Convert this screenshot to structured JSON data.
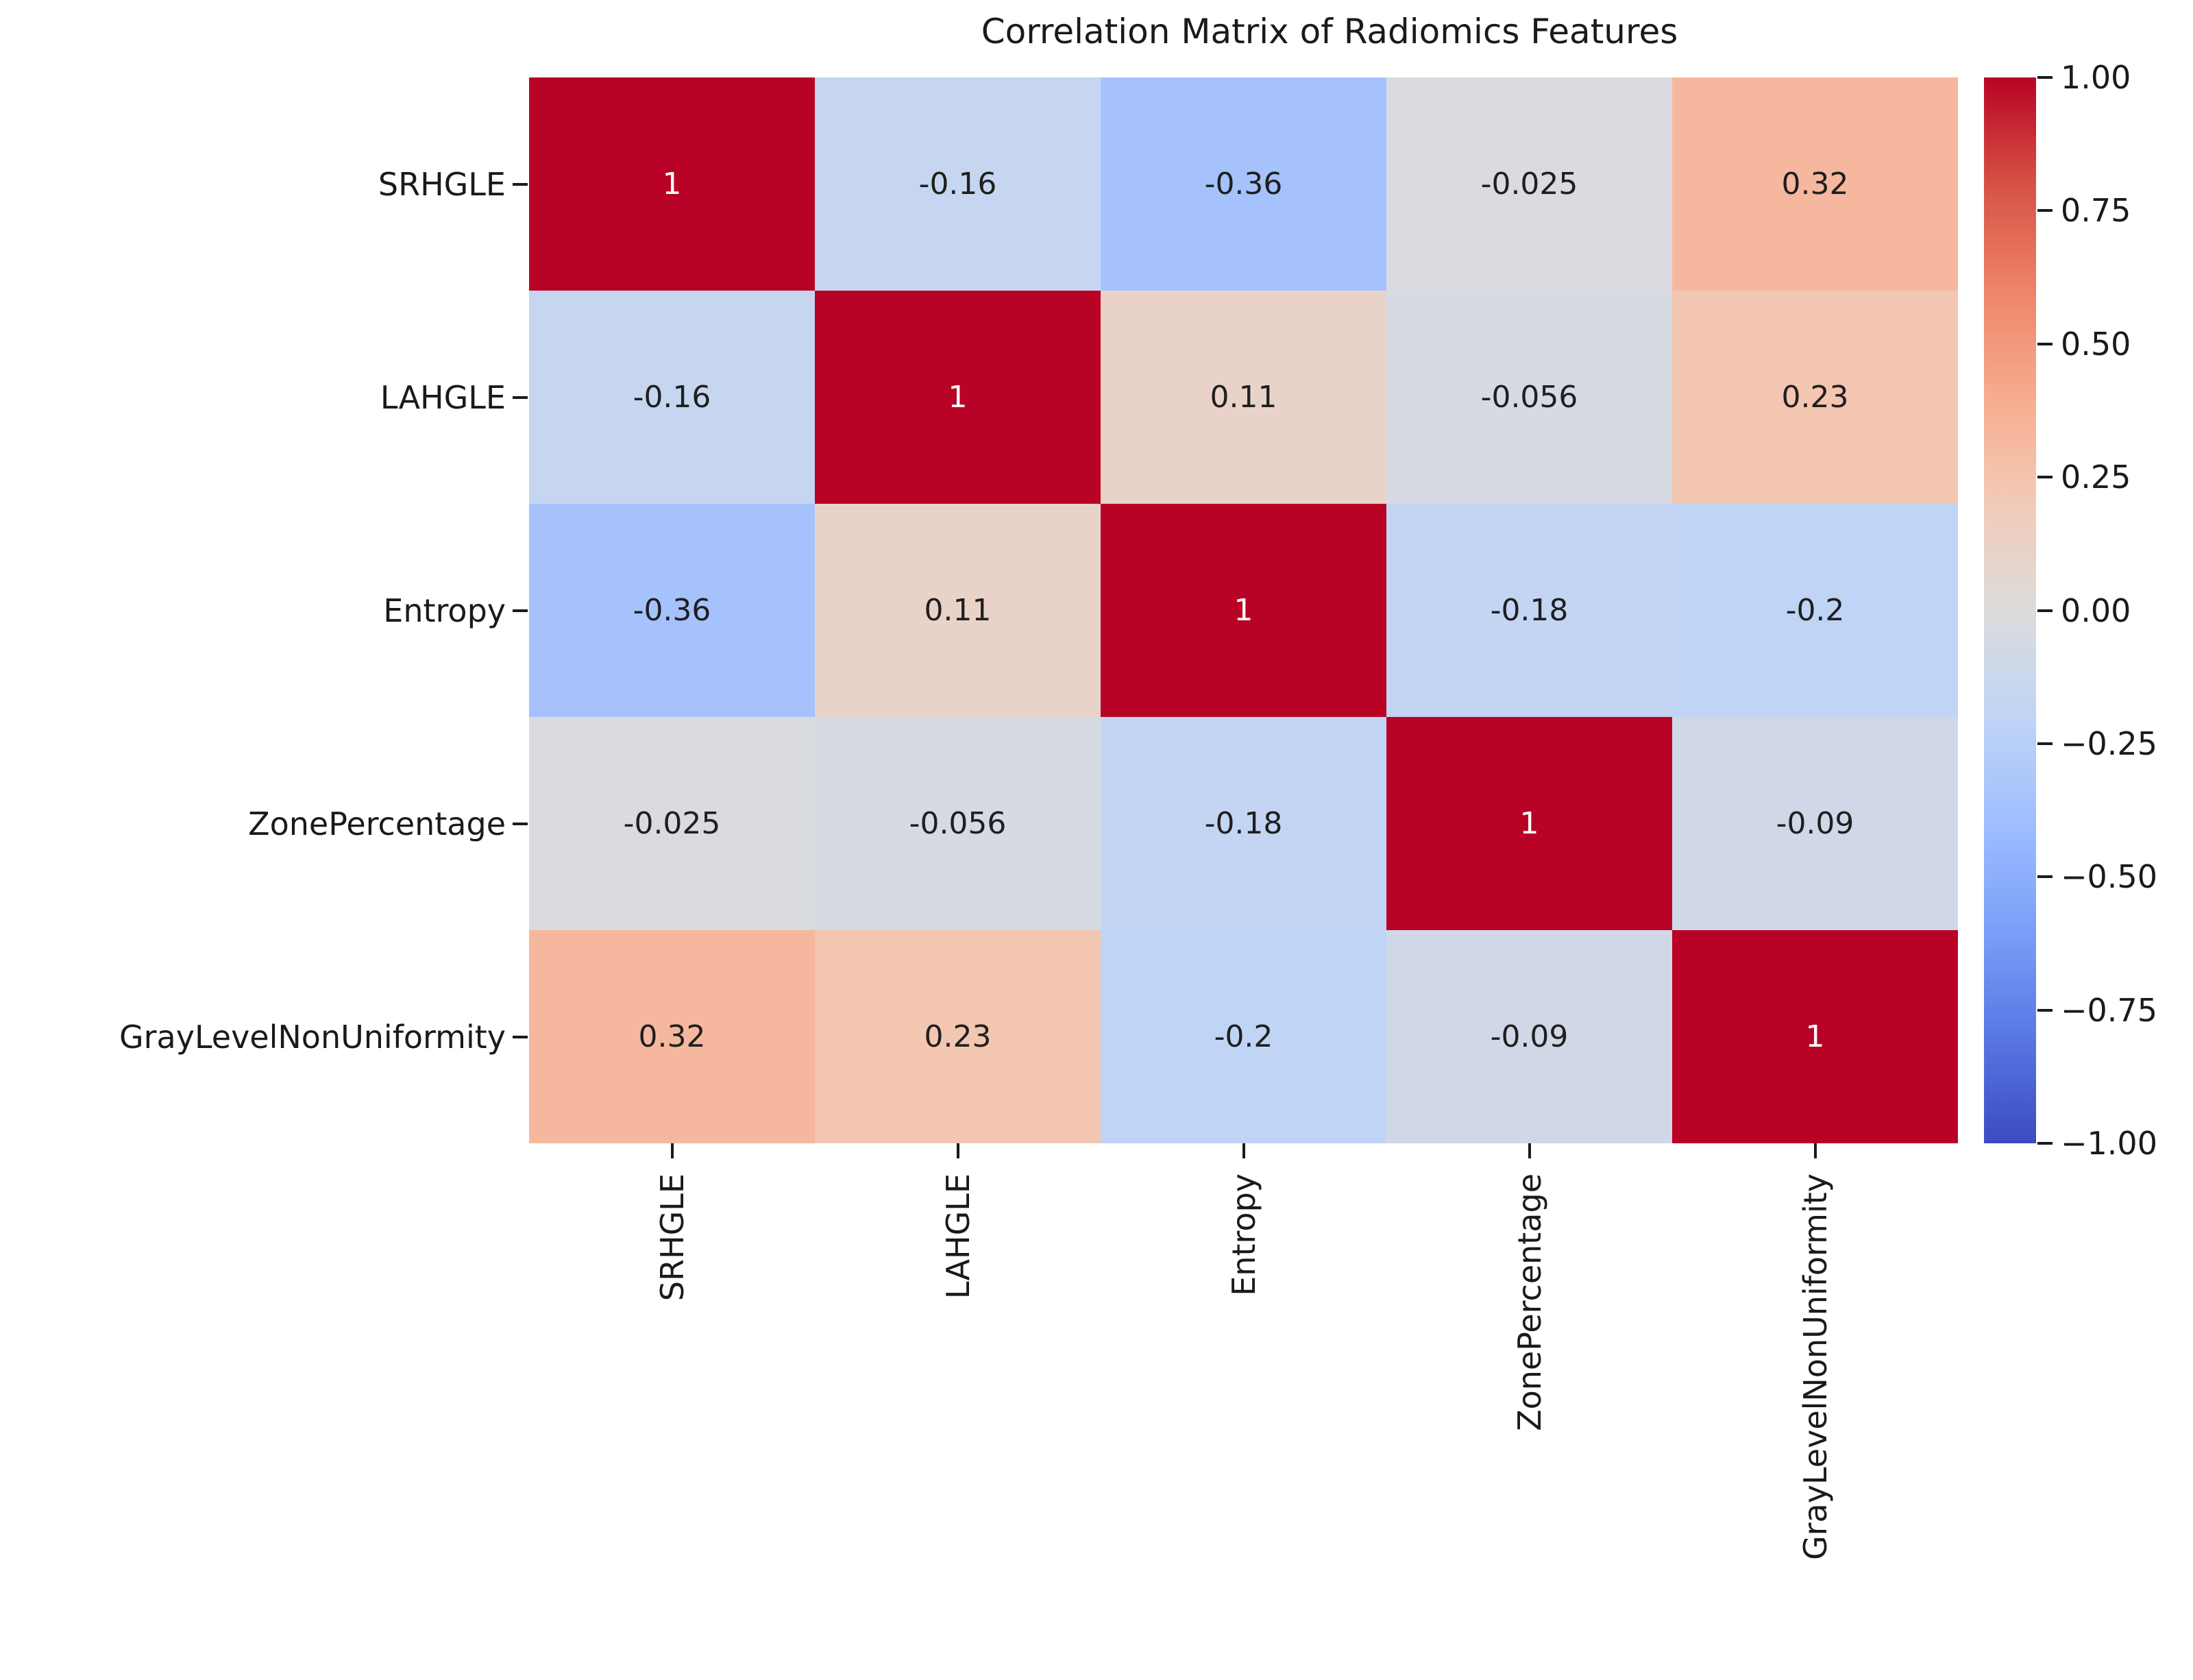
{
  "title": "Correlation Matrix of Radiomics Features",
  "chart_data": {
    "type": "heatmap",
    "title": "Correlation Matrix of Radiomics Features",
    "categories": [
      "SRHGLE",
      "LAHGLE",
      "Entropy",
      "ZonePercentage",
      "GrayLevelNonUniformity"
    ],
    "x_labels": [
      "SRHGLE",
      "LAHGLE",
      "Entropy",
      "ZonePercentage",
      "GrayLevelNonUniformity"
    ],
    "y_labels": [
      "SRHGLE",
      "LAHGLE",
      "Entropy",
      "ZonePercentage",
      "GrayLevelNonUniformity"
    ],
    "matrix": [
      [
        1,
        -0.16,
        -0.36,
        -0.025,
        0.32
      ],
      [
        -0.16,
        1,
        0.11,
        -0.056,
        0.23
      ],
      [
        -0.36,
        0.11,
        1,
        -0.18,
        -0.2
      ],
      [
        -0.025,
        -0.056,
        -0.18,
        1,
        -0.09
      ],
      [
        0.32,
        0.23,
        -0.2,
        -0.09,
        1
      ]
    ],
    "cell_labels": [
      [
        "1",
        "-0.16",
        "-0.36",
        "-0.025",
        "0.32"
      ],
      [
        "-0.16",
        "1",
        "0.11",
        "-0.056",
        "0.23"
      ],
      [
        "-0.36",
        "0.11",
        "1",
        "-0.18",
        "-0.2"
      ],
      [
        "-0.025",
        "-0.056",
        "-0.18",
        "1",
        "-0.09"
      ],
      [
        "0.32",
        "0.23",
        "-0.2",
        "-0.09",
        "1"
      ]
    ],
    "cell_colors": [
      [
        "#b80326",
        "#c6d6f0",
        "#a5c2fd",
        "#d9dbdf",
        "#f5b89e"
      ],
      [
        "#c6d6f0",
        "#b80326",
        "#e9d3c8",
        "#d5dae3",
        "#f3c6b1"
      ],
      [
        "#a5c2fd",
        "#e9d3c8",
        "#b80326",
        "#c3d5f3",
        "#c0d4f5"
      ],
      [
        "#d9dbdf",
        "#d5dae3",
        "#c3d5f3",
        "#b80326",
        "#d0d8e7"
      ],
      [
        "#f5b89e",
        "#f3c6b1",
        "#c0d4f5",
        "#d0d8e7",
        "#b80326"
      ]
    ],
    "annot_color_diagonal": "#ffffff",
    "annot_color_off_diagonal": "#1f1f1f",
    "colormap": "coolwarm",
    "vmin": -1,
    "vmax": 1,
    "grid": false,
    "legend_position": "right-colorbar",
    "colorbar": {
      "tick_labels": [
        "1.00",
        "0.75",
        "0.50",
        "0.25",
        "0.00",
        "−0.25",
        "−0.50",
        "−0.75",
        "−1.00"
      ],
      "tick_values": [
        1.0,
        0.75,
        0.5,
        0.25,
        0.0,
        -0.25,
        -0.5,
        -0.75,
        -1.0
      ],
      "gradient_stops_bottom_to_top": [
        "#3b4cc0",
        "#5977e3",
        "#7b9ff9",
        "#9ebeff",
        "#c0d4f5",
        "#dddcdc",
        "#f2cbb7",
        "#f7ac8e",
        "#ee8468",
        "#d65244",
        "#b80326"
      ]
    }
  }
}
